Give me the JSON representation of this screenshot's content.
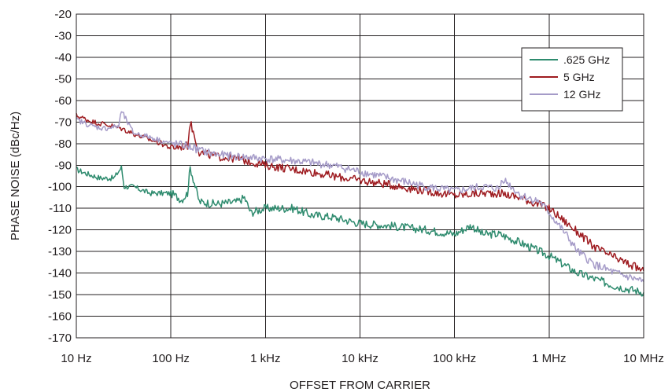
{
  "chart_data": {
    "type": "line",
    "title": "",
    "xlabel": "OFFSET FROM CARRIER",
    "ylabel": "PHASE NOISE (dBc/Hz)",
    "xscale": "log",
    "xlim": [
      10,
      10000000
    ],
    "ylim": [
      -170,
      -20
    ],
    "x_ticks": [
      {
        "value": 10,
        "label": "10 Hz"
      },
      {
        "value": 100,
        "label": "100 Hz"
      },
      {
        "value": 1000,
        "label": "1 kHz"
      },
      {
        "value": 10000,
        "label": "10 kHz"
      },
      {
        "value": 100000,
        "label": "100 kHz"
      },
      {
        "value": 1000000,
        "label": "1 MHz"
      },
      {
        "value": 10000000,
        "label": "10 MHz"
      }
    ],
    "y_ticks": [
      -20,
      -30,
      -40,
      -50,
      -60,
      -70,
      -80,
      -90,
      -100,
      -110,
      -120,
      -130,
      -140,
      -150,
      -160,
      -170
    ],
    "grid": true,
    "legend": "top-right",
    "series": [
      {
        "name": ".625 GHz",
        "color": "#2e8b6e",
        "x": [
          10,
          13,
          18,
          25,
          30,
          32,
          40,
          60,
          100,
          130,
          150,
          160,
          200,
          300,
          500,
          600,
          700,
          1000,
          2000,
          3000,
          5000,
          10000,
          20000,
          50000,
          100000,
          150000,
          200000,
          300000,
          500000,
          1000000,
          2000000,
          5000000,
          10000000
        ],
        "y": [
          -92,
          -94,
          -96,
          -96,
          -91,
          -100,
          -100,
          -103,
          -103,
          -106,
          -103,
          -91,
          -107,
          -108,
          -107,
          -105,
          -112,
          -110,
          -110,
          -113,
          -114,
          -117,
          -118,
          -120,
          -122,
          -118,
          -122,
          -122,
          -126,
          -132,
          -140,
          -146,
          -149
        ]
      },
      {
        "name": "5 GHz",
        "color": "#9e1b20",
        "x": [
          10,
          15,
          20,
          30,
          50,
          80,
          100,
          150,
          160,
          200,
          300,
          500,
          800,
          1000,
          2000,
          3000,
          5000,
          10000,
          20000,
          50000,
          100000,
          200000,
          300000,
          500000,
          1000000,
          2000000,
          3000000,
          5000000,
          10000000
        ],
        "y": [
          -67,
          -70,
          -71,
          -73,
          -77,
          -80,
          -82,
          -81,
          -70,
          -84,
          -86,
          -87,
          -89,
          -90,
          -92,
          -93,
          -95,
          -97,
          -99,
          -102,
          -104,
          -103,
          -103,
          -105,
          -110,
          -121,
          -128,
          -133,
          -139
        ]
      },
      {
        "name": "12 GHz",
        "color": "#a59bc8",
        "x": [
          10,
          15,
          20,
          28,
          30,
          40,
          60,
          100,
          150,
          200,
          300,
          500,
          1000,
          2000,
          5000,
          10000,
          20000,
          50000,
          100000,
          200000,
          300000,
          320000,
          500000,
          800000,
          1000000,
          1500000,
          2000000,
          3000000,
          5000000,
          10000000
        ],
        "y": [
          -69,
          -72,
          -73,
          -72,
          -65,
          -75,
          -77,
          -80,
          -81,
          -83,
          -85,
          -86,
          -87,
          -88,
          -90,
          -93,
          -96,
          -100,
          -102,
          -100,
          -101,
          -96,
          -104,
          -107,
          -112,
          -122,
          -130,
          -136,
          -140,
          -144
        ]
      }
    ]
  }
}
